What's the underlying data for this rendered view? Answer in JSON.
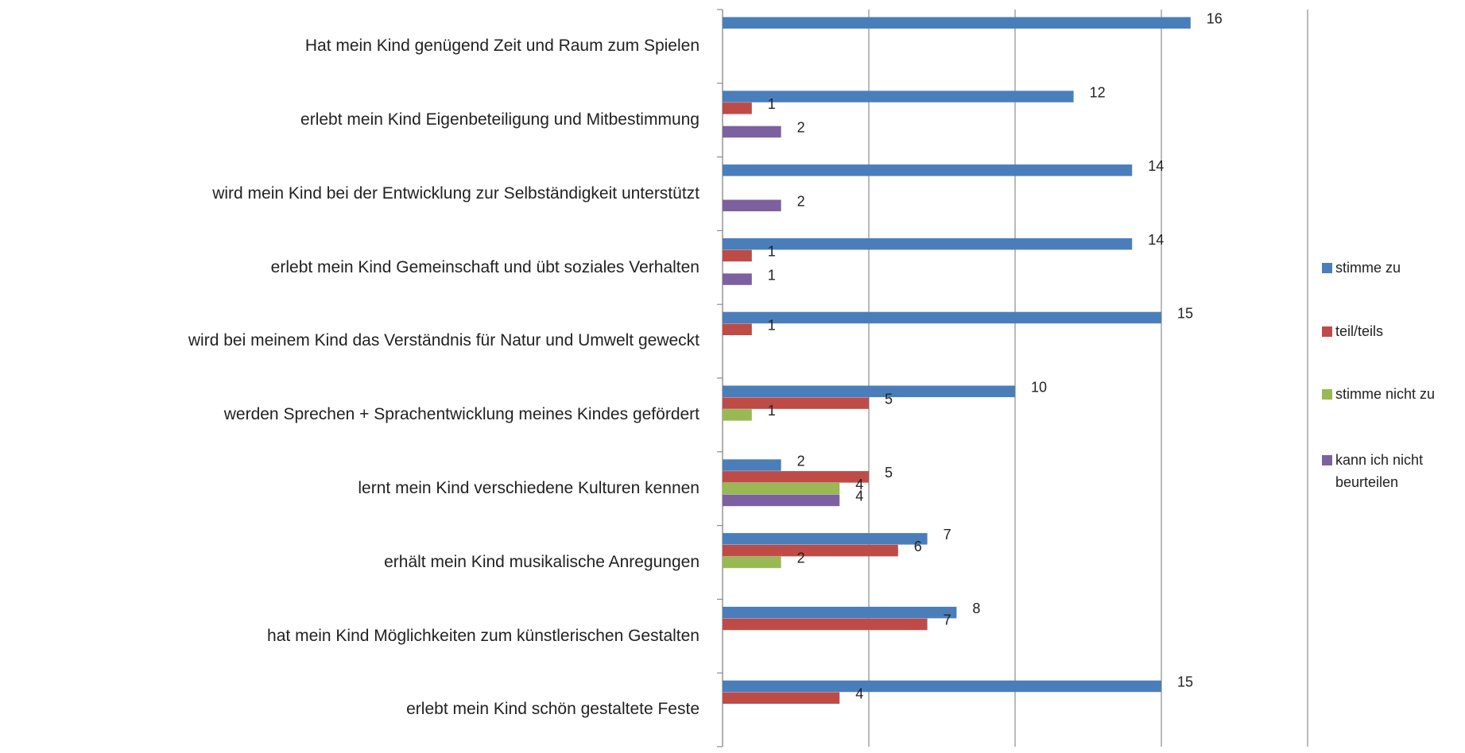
{
  "chart_data": {
    "type": "bar",
    "orientation": "horizontal",
    "categories": [
      "Hat mein Kind genügend Zeit und Raum zum Spielen",
      "erlebt mein Kind Eigenbeteiligung und Mitbestimmung",
      "wird mein Kind bei der Entwicklung zur Selbständigkeit unterstützt",
      "erlebt mein Kind Gemeinschaft und übt soziales Verhalten",
      "wird bei meinem Kind das Verständnis für Natur und Umwelt geweckt",
      "werden Sprechen + Sprachentwicklung meines Kindes gefördert",
      "lernt mein Kind verschiedene Kulturen kennen",
      "erhält mein Kind musikalische Anregungen",
      "hat mein Kind Möglichkeiten zum künstlerischen Gestalten",
      "erlebt mein Kind schön gestaltete Feste"
    ],
    "series": [
      {
        "name": "stimme zu",
        "color": "#4a7ebb",
        "values": [
          16,
          12,
          14,
          14,
          15,
          10,
          2,
          7,
          8,
          15
        ]
      },
      {
        "name": "teil/teils",
        "color": "#be4b48",
        "values": [
          null,
          1,
          null,
          1,
          1,
          5,
          5,
          6,
          7,
          4
        ]
      },
      {
        "name": "stimme nicht zu",
        "color": "#98b954",
        "values": [
          null,
          null,
          null,
          null,
          null,
          1,
          4,
          2,
          null,
          null
        ]
      },
      {
        "name": "kann ich nicht beurteilen",
        "color": "#7d60a0",
        "values": [
          null,
          2,
          2,
          1,
          null,
          null,
          4,
          null,
          null,
          null
        ]
      }
    ],
    "xlim": [
      0,
      20
    ],
    "xticks": [
      0,
      5,
      10,
      15,
      20
    ],
    "grid": true,
    "legend": "right"
  }
}
